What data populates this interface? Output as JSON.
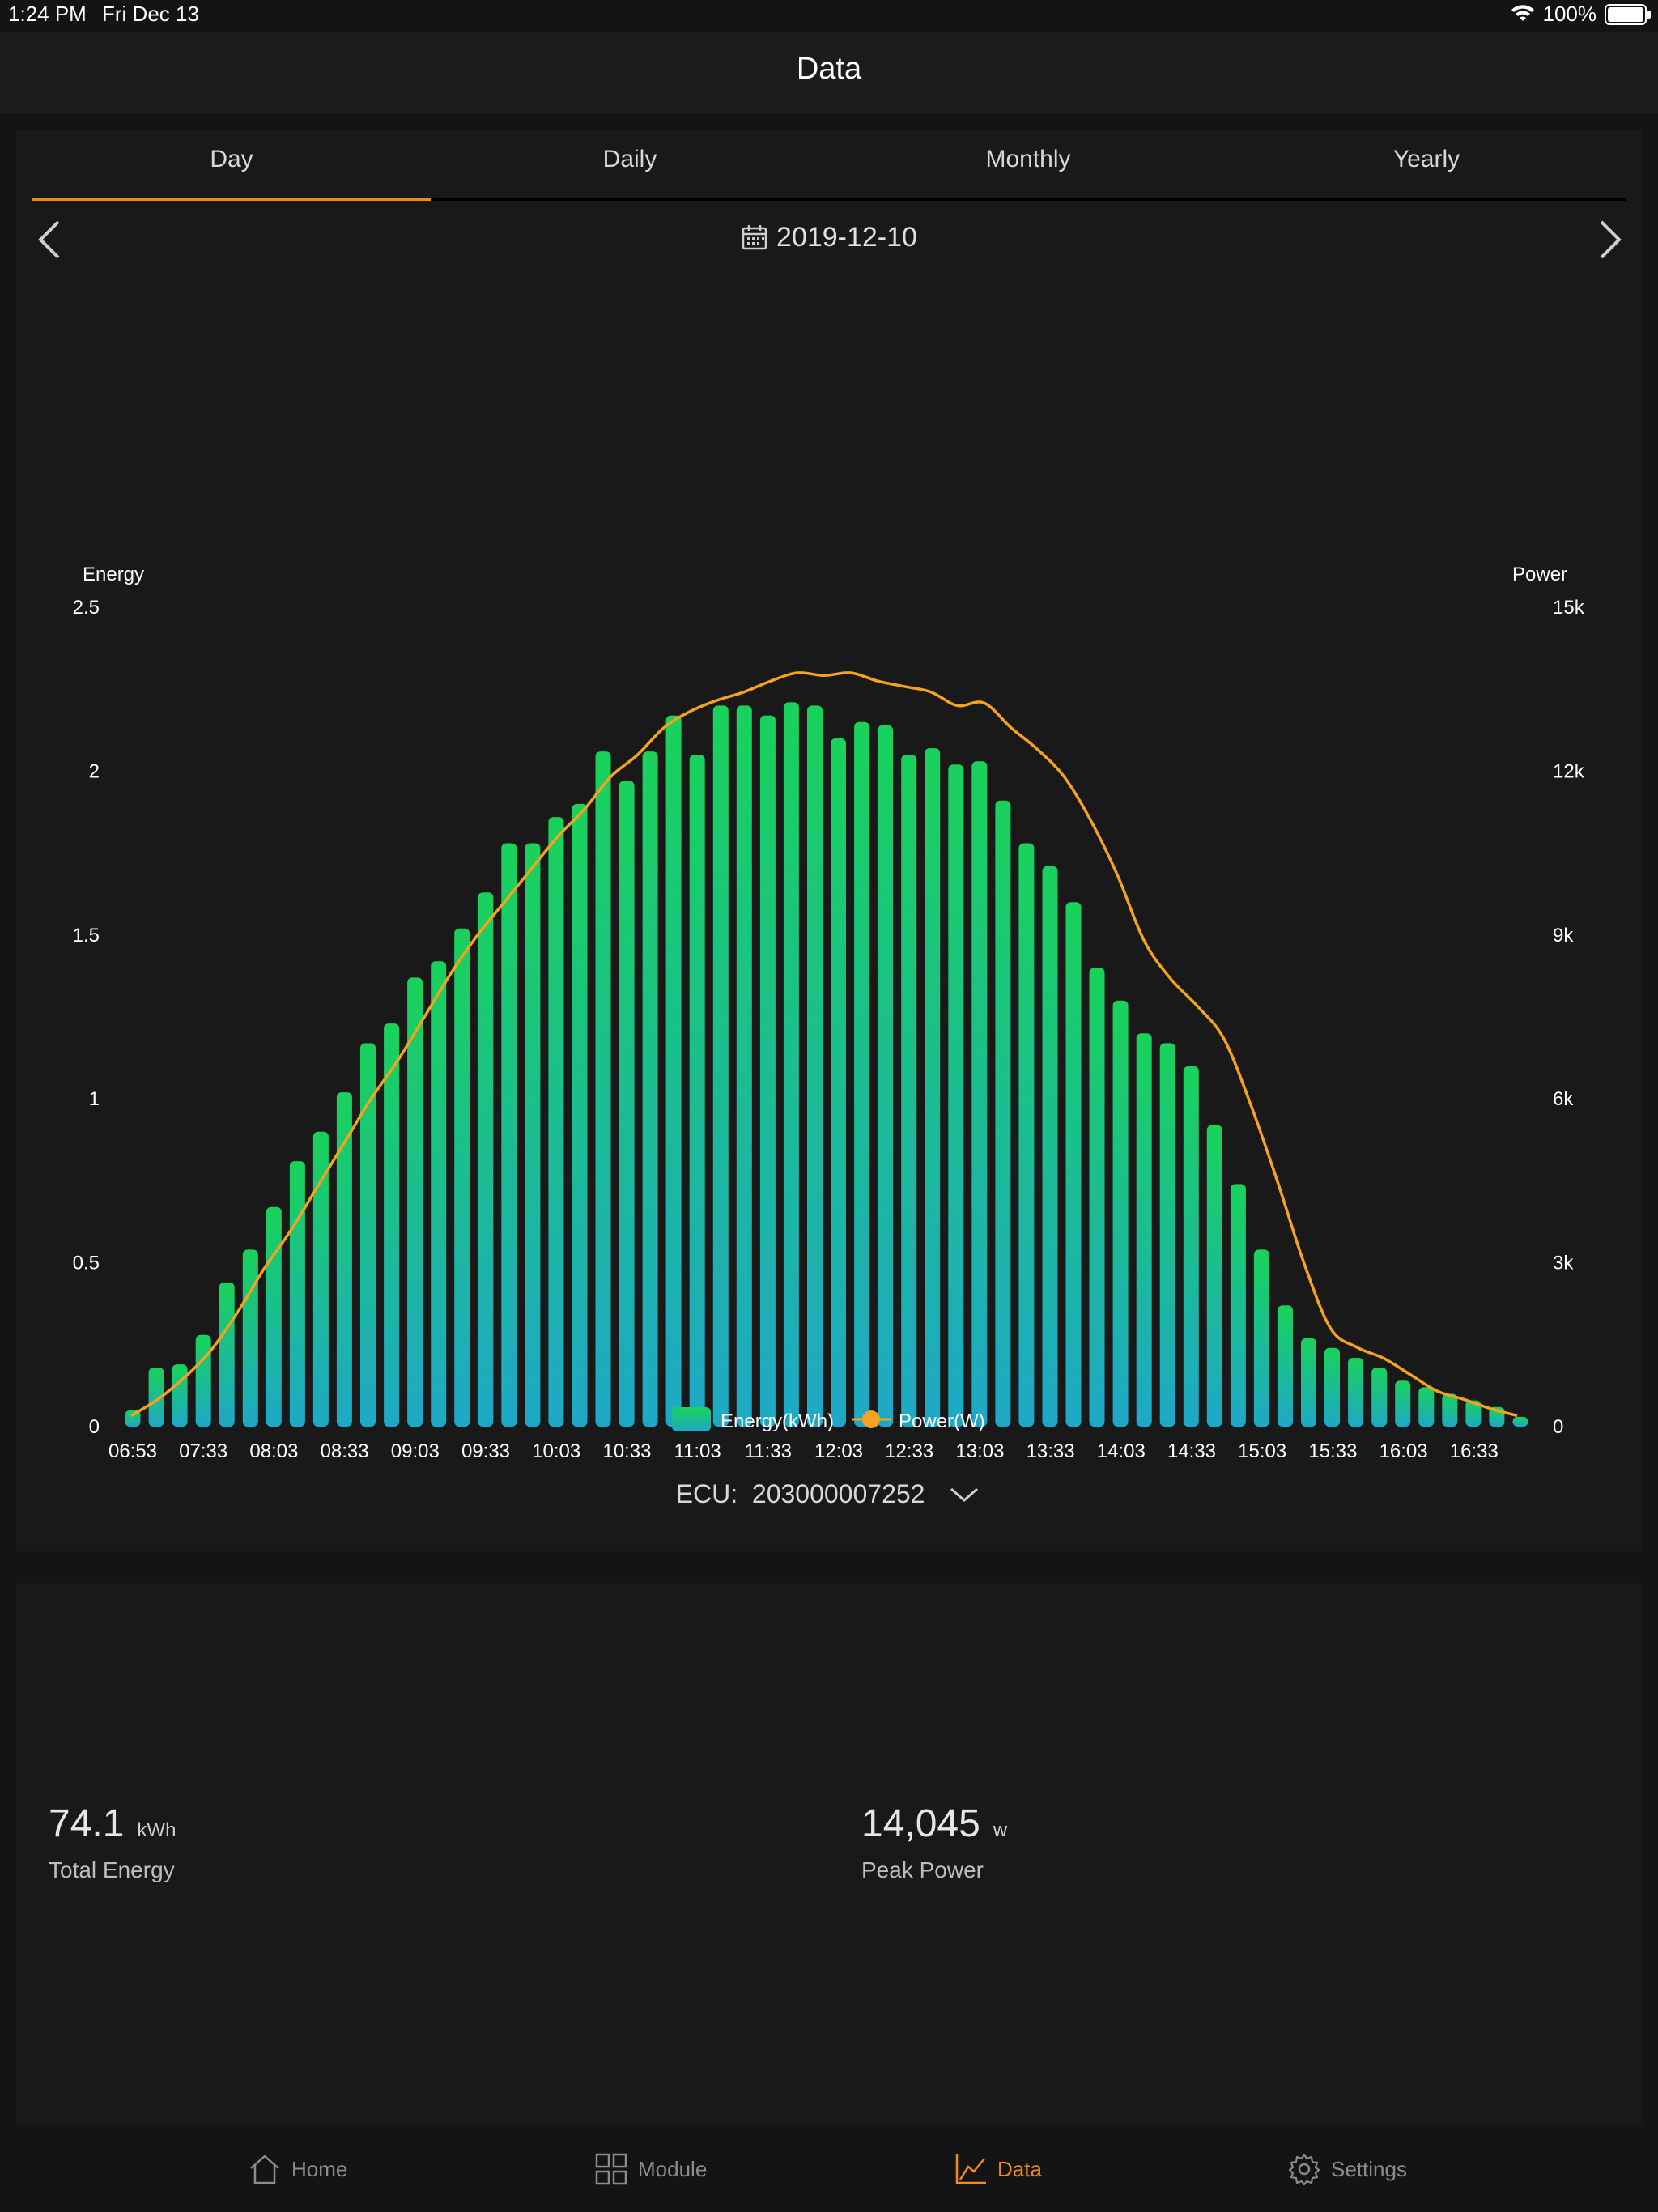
{
  "status_bar": {
    "time": "1:24 PM",
    "date": "Fri Dec 13",
    "battery": "100%",
    "icons": [
      "wifi-icon",
      "battery-icon"
    ]
  },
  "nav": {
    "title": "Data"
  },
  "tabs": [
    {
      "label": "Day",
      "active": true
    },
    {
      "label": "Daily",
      "active": false
    },
    {
      "label": "Monthly",
      "active": false
    },
    {
      "label": "Yearly",
      "active": false
    }
  ],
  "date_picker": {
    "date": "2019-12-10",
    "prev_icon": "chevron-left-icon",
    "next_icon": "chevron-right-icon",
    "calendar_icon": "calendar-icon"
  },
  "chart_data": {
    "type": "bar",
    "left_axis_label": "Energy",
    "right_axis_label": "Power",
    "left_ticks": [
      "0",
      "0.5",
      "1",
      "1.5",
      "2",
      "2.5"
    ],
    "right_ticks": [
      "0",
      "3k",
      "6k",
      "9k",
      "12k",
      "15k"
    ],
    "ylim_left": [
      0,
      2.5
    ],
    "ylim_right": [
      0,
      15000
    ],
    "x_tick_labels": [
      "06:53",
      "07:33",
      "08:03",
      "08:33",
      "09:03",
      "09:33",
      "10:03",
      "10:33",
      "11:03",
      "11:33",
      "12:03",
      "12:33",
      "13:03",
      "13:33",
      "14:03",
      "14:33",
      "15:03",
      "15:33",
      "16:03",
      "16:33"
    ],
    "series": [
      {
        "name": "Energy(kWh)",
        "type": "bar",
        "axis": "left",
        "values": [
          0.05,
          0.18,
          0.19,
          0.28,
          0.44,
          0.54,
          0.67,
          0.81,
          0.9,
          1.02,
          1.17,
          1.23,
          1.37,
          1.42,
          1.52,
          1.63,
          1.78,
          1.78,
          1.86,
          1.9,
          2.06,
          1.97,
          2.06,
          2.17,
          2.05,
          2.2,
          2.2,
          2.17,
          2.21,
          2.2,
          2.1,
          2.15,
          2.14,
          2.05,
          2.07,
          2.02,
          2.03,
          1.91,
          1.78,
          1.71,
          1.6,
          1.4,
          1.3,
          1.2,
          1.17,
          1.1,
          0.92,
          0.74,
          0.54,
          0.37,
          0.27,
          0.24,
          0.21,
          0.18,
          0.14,
          0.12,
          0.1,
          0.08,
          0.06,
          0.03
        ]
      },
      {
        "name": "Power(W)",
        "type": "line",
        "axis": "right",
        "values": [
          200,
          500,
          900,
          1400,
          2100,
          2900,
          3600,
          4400,
          5200,
          6000,
          6700,
          7500,
          8300,
          9000,
          9600,
          10200,
          10800,
          11300,
          11900,
          12300,
          12800,
          13100,
          13300,
          13450,
          13650,
          13800,
          13750,
          13800,
          13650,
          13550,
          13450,
          13200,
          13250,
          12800,
          12400,
          11900,
          11100,
          10100,
          8900,
          8200,
          7700,
          7100,
          5900,
          4500,
          3000,
          1800,
          1450,
          1250,
          950,
          650,
          500,
          330,
          200
        ]
      }
    ],
    "legend": [
      "Energy(kWh)",
      "Power(W)"
    ],
    "legend_position": "bottom-center",
    "colors": {
      "bar_top": "#19d25a",
      "bar_bottom": "#1ea8c7",
      "line": "#f5a31f"
    }
  },
  "ecu": {
    "label": "ECU:",
    "value": "203000007252",
    "icon": "chevron-down-icon"
  },
  "stats": [
    {
      "value": "74.1",
      "unit": "kWh",
      "label": "Total Energy"
    },
    {
      "value": "14,045",
      "unit": "w",
      "label": "Peak Power"
    }
  ],
  "tab_bar": [
    {
      "label": "Home",
      "icon": "home-icon",
      "active": false
    },
    {
      "label": "Module",
      "icon": "grid-icon",
      "active": false
    },
    {
      "label": "Data",
      "icon": "chart-icon",
      "active": true
    },
    {
      "label": "Settings",
      "icon": "gear-icon",
      "active": false
    }
  ],
  "accent_color": "#f08a1e"
}
